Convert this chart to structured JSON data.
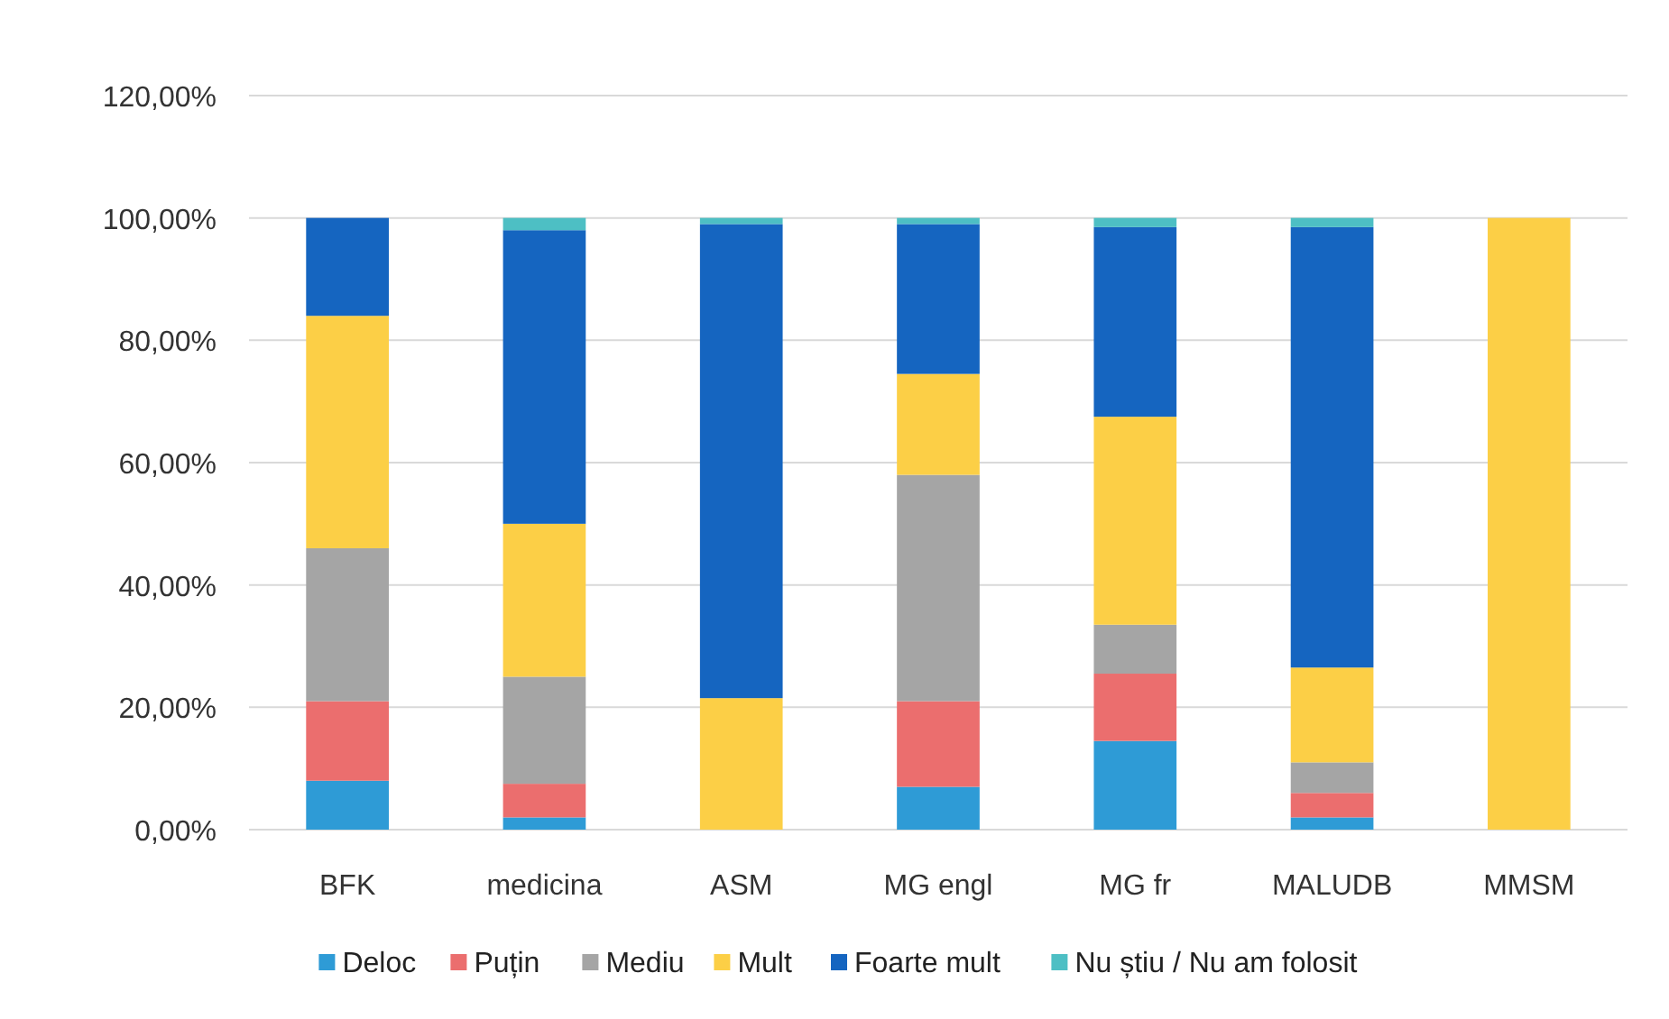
{
  "chart_data": {
    "type": "bar",
    "stacked": true,
    "categories": [
      "BFK",
      "medicina",
      "ASM",
      "MG engl",
      "MG fr",
      "MALUDB",
      "MMSM"
    ],
    "series": [
      {
        "name": "Deloc",
        "color": "#2e9bd6",
        "values": [
          8,
          2,
          0,
          7,
          14.5,
          2,
          0
        ]
      },
      {
        "name": "Puțin",
        "color": "#eb6e6e",
        "values": [
          13,
          5.5,
          0,
          14,
          11,
          4,
          0
        ]
      },
      {
        "name": "Mediu",
        "color": "#a5a5a5",
        "values": [
          25,
          17.5,
          0,
          37,
          8,
          5,
          0
        ]
      },
      {
        "name": "Mult",
        "color": "#fccf46",
        "values": [
          38,
          25,
          21.5,
          16.5,
          34,
          15.5,
          100
        ]
      },
      {
        "name": "Foarte mult",
        "color": "#1565c0",
        "values": [
          16,
          48,
          77.5,
          24.5,
          31,
          72,
          0
        ]
      },
      {
        "name": "Nu știu / Nu am folosit",
        "color": "#4dbfc4",
        "values": [
          0,
          2,
          1,
          1,
          1.5,
          1.5,
          0
        ]
      }
    ],
    "ylim": [
      0,
      120
    ],
    "yticks": [
      {
        "value": 0,
        "label": "0,00%"
      },
      {
        "value": 20,
        "label": "20,00%"
      },
      {
        "value": 40,
        "label": "40,00%"
      },
      {
        "value": 60,
        "label": "60,00%"
      },
      {
        "value": 80,
        "label": "80,00%"
      },
      {
        "value": 100,
        "label": "100,00%"
      },
      {
        "value": 120,
        "label": "120,00%"
      }
    ],
    "grid": "y",
    "legend": "bottom"
  }
}
